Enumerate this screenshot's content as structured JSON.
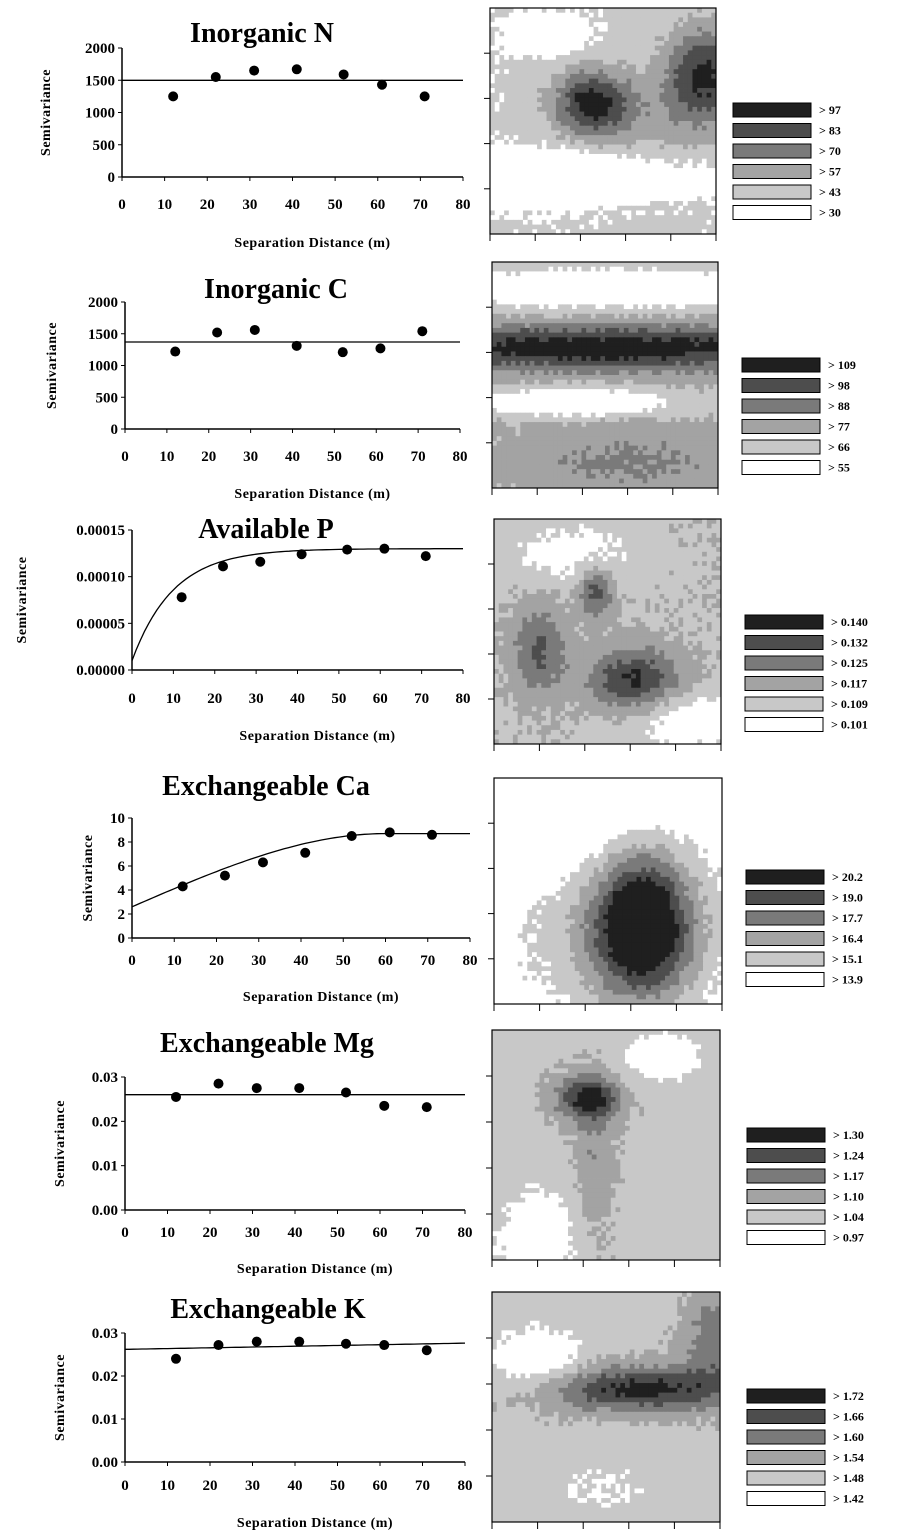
{
  "chart_data": [
    {
      "type": "scatter",
      "title": "Inorganic N",
      "xlabel": "Separation Distance (m)",
      "ylabel": "Semivariance",
      "xlim": [
        0,
        80
      ],
      "ylim": [
        0,
        2000
      ],
      "xticks": [
        "0",
        "10",
        "20",
        "30",
        "40",
        "50",
        "60",
        "70",
        "80"
      ],
      "yticks": [
        "0",
        "500",
        "1000",
        "1500",
        "2000"
      ],
      "points": {
        "x": [
          12,
          22,
          31,
          41,
          52,
          61,
          71
        ],
        "y": [
          1250,
          1550,
          1650,
          1670,
          1590,
          1430,
          1250
        ]
      },
      "model": {
        "type": "nugget",
        "nugget": 1500
      },
      "map": {
        "legend": [
          "> 97",
          "> 83",
          "> 70",
          "> 57",
          "> 43",
          "> 30"
        ],
        "colors": [
          "#1f1f1f",
          "#4d4d4d",
          "#7a7a7a",
          "#a3a3a3",
          "#c8c8c8",
          "#ffffff"
        ],
        "field": "n"
      }
    },
    {
      "type": "scatter",
      "title": "Inorganic C",
      "xlabel": "Separation Distance (m)",
      "ylabel": "Semivariance",
      "xlim": [
        0,
        80
      ],
      "ylim": [
        0,
        2000
      ],
      "xticks": [
        "0",
        "10",
        "20",
        "30",
        "40",
        "50",
        "60",
        "70",
        "80"
      ],
      "yticks": [
        "0",
        "500",
        "1000",
        "1500",
        "2000"
      ],
      "points": {
        "x": [
          12,
          22,
          31,
          41,
          52,
          61,
          71
        ],
        "y": [
          1220,
          1520,
          1560,
          1310,
          1210,
          1270,
          1540
        ]
      },
      "model": {
        "type": "nugget",
        "nugget": 1370
      },
      "map": {
        "legend": [
          "> 109",
          "> 98",
          "> 88",
          "> 77",
          "> 66",
          "> 55"
        ],
        "colors": [
          "#1f1f1f",
          "#4d4d4d",
          "#7a7a7a",
          "#a3a3a3",
          "#c8c8c8",
          "#ffffff"
        ],
        "field": "c"
      }
    },
    {
      "type": "scatter",
      "title": "Available P",
      "xlabel": "Separation Distance (m)",
      "ylabel": "Semivariance",
      "xlim": [
        0,
        80
      ],
      "ylim": [
        0,
        0.00015
      ],
      "xticks": [
        "0",
        "10",
        "20",
        "30",
        "40",
        "50",
        "60",
        "70",
        "80"
      ],
      "yticks": [
        "0.00000",
        "0.00005",
        "0.00010",
        "0.00015"
      ],
      "points": {
        "x": [
          12,
          22,
          31,
          41,
          52,
          61,
          71
        ],
        "y": [
          7.8e-05,
          0.000111,
          0.000116,
          0.000124,
          0.000129,
          0.00013,
          0.000122
        ]
      },
      "model": {
        "type": "exponential",
        "nugget": 1e-05,
        "sill": 0.00013,
        "range": 30
      },
      "map": {
        "legend": [
          "> 0.140",
          "> 0.132",
          "> 0.125",
          "> 0.117",
          "> 0.109",
          "> 0.101"
        ],
        "colors": [
          "#1f1f1f",
          "#4d4d4d",
          "#7a7a7a",
          "#a3a3a3",
          "#c8c8c8",
          "#ffffff"
        ],
        "field": "p"
      }
    },
    {
      "type": "scatter",
      "title": "Exchangeable Ca",
      "xlabel": "Separation Distance (m)",
      "ylabel": "Semivariance",
      "xlim": [
        0,
        80
      ],
      "ylim": [
        0,
        10
      ],
      "xticks": [
        "0",
        "10",
        "20",
        "30",
        "40",
        "50",
        "60",
        "70",
        "80"
      ],
      "yticks": [
        "0",
        "2",
        "4",
        "6",
        "8",
        "10"
      ],
      "points": {
        "x": [
          12,
          22,
          31,
          41,
          52,
          61,
          71
        ],
        "y": [
          4.3,
          5.2,
          6.3,
          7.1,
          8.5,
          8.8,
          8.6
        ]
      },
      "model": {
        "type": "spherical",
        "nugget": 2.6,
        "sill": 8.7,
        "range": 60
      },
      "map": {
        "legend": [
          "> 20.2",
          "> 19.0",
          "> 17.7",
          "> 16.4",
          "> 15.1",
          "> 13.9"
        ],
        "colors": [
          "#1f1f1f",
          "#4d4d4d",
          "#7a7a7a",
          "#a3a3a3",
          "#c8c8c8",
          "#ffffff"
        ],
        "field": "ca"
      }
    },
    {
      "type": "scatter",
      "title": "Exchangeable Mg",
      "xlabel": "Separation Distance (m)",
      "ylabel": "Semivariance",
      "xlim": [
        0,
        80
      ],
      "ylim": [
        0,
        0.03
      ],
      "xticks": [
        "0",
        "10",
        "20",
        "30",
        "40",
        "50",
        "60",
        "70",
        "80"
      ],
      "yticks": [
        "0.00",
        "0.01",
        "0.02",
        "0.03"
      ],
      "points": {
        "x": [
          12,
          22,
          31,
          41,
          52,
          61,
          71
        ],
        "y": [
          0.0255,
          0.0285,
          0.0275,
          0.0275,
          0.0265,
          0.0235,
          0.0232
        ]
      },
      "model": {
        "type": "nugget",
        "nugget": 0.026
      },
      "map": {
        "legend": [
          "> 1.30",
          "> 1.24",
          "> 1.17",
          "> 1.10",
          "> 1.04",
          "> 0.97"
        ],
        "colors": [
          "#1f1f1f",
          "#4d4d4d",
          "#7a7a7a",
          "#a3a3a3",
          "#c8c8c8",
          "#ffffff"
        ],
        "field": "mg"
      }
    },
    {
      "type": "scatter",
      "title": "Exchangeable K",
      "xlabel": "Separation Distance (m)",
      "ylabel": "Semivariance",
      "xlim": [
        0,
        80
      ],
      "ylim": [
        0,
        0.03
      ],
      "xticks": [
        "0",
        "10",
        "20",
        "30",
        "40",
        "50",
        "60",
        "70",
        "80"
      ],
      "yticks": [
        "0.00",
        "0.01",
        "0.02",
        "0.03"
      ],
      "points": {
        "x": [
          12,
          22,
          31,
          41,
          52,
          61,
          71
        ],
        "y": [
          0.024,
          0.0272,
          0.028,
          0.028,
          0.0275,
          0.0272,
          0.026
        ]
      },
      "model": {
        "type": "linear",
        "a": 0.0262,
        "b": 1.8e-05
      },
      "map": {
        "legend": [
          "> 1.72",
          "> 1.66",
          "> 1.60",
          "> 1.54",
          "> 1.48",
          "> 1.42"
        ],
        "colors": [
          "#1f1f1f",
          "#4d4d4d",
          "#7a7a7a",
          "#a3a3a3",
          "#c8c8c8",
          "#ffffff"
        ],
        "field": "k"
      }
    }
  ]
}
